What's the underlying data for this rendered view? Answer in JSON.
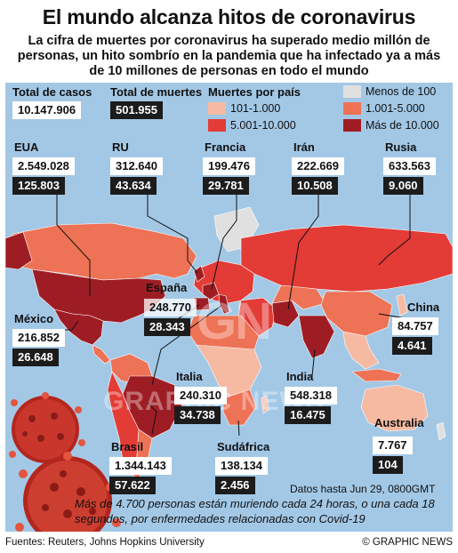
{
  "header": {
    "title": "El mundo alcanza hitos de coronavirus",
    "subtitle": "La cifra de muertes por coronavirus ha superado medio millón de personas, un hito sombrío en la pandemia que ha infectado ya a más de 10 millones de personas en todo el mundo"
  },
  "totals": {
    "cases_label": "Total de casos",
    "cases_value": "10.147.906",
    "deaths_label": "Total de muertes",
    "deaths_value": "501.955"
  },
  "legend": {
    "title": "Muertes por país",
    "items": [
      {
        "label": "Menos de 100",
        "color": "#e0e0e0"
      },
      {
        "label": "101-1.000",
        "color": "#f6b9a2"
      },
      {
        "label": "1.001-5.000",
        "color": "#ee7255"
      },
      {
        "label": "5.001-10.000",
        "color": "#e33b36"
      },
      {
        "label": "Más de 10.000",
        "color": "#9e1d24"
      }
    ]
  },
  "countries": {
    "usa": {
      "name": "EUA",
      "cases": "2.549.028",
      "deaths": "125.803"
    },
    "uk": {
      "name": "RU",
      "cases": "312.640",
      "deaths": "43.634"
    },
    "france": {
      "name": "Francia",
      "cases": "199.476",
      "deaths": "29.781"
    },
    "iran": {
      "name": "Irán",
      "cases": "222.669",
      "deaths": "10.508"
    },
    "russia": {
      "name": "Rusia",
      "cases": "633.563",
      "deaths": "9.060"
    },
    "spain": {
      "name": "España",
      "cases": "248.770",
      "deaths": "28.343"
    },
    "mexico": {
      "name": "México",
      "cases": "216.852",
      "deaths": "26.648"
    },
    "china": {
      "name": "China",
      "cases": "84.757",
      "deaths": "4.641"
    },
    "italy": {
      "name": "Italia",
      "cases": "240.310",
      "deaths": "34.738"
    },
    "india": {
      "name": "India",
      "cases": "548.318",
      "deaths": "16.475"
    },
    "australia": {
      "name": "Australia",
      "cases": "7.767",
      "deaths": "104"
    },
    "brazil": {
      "name": "Brasil",
      "cases": "1.344.143",
      "deaths": "57.622"
    },
    "south_africa": {
      "name": "Sudáfrica",
      "cases": "138.134",
      "deaths": "2.456"
    }
  },
  "watermark": {
    "logo": "GN",
    "text": "GRAPHIC NEWS"
  },
  "date_note": "Datos hasta Jun 29, 0800GMT",
  "bottom_note": "Más de 4.700 personas están muriendo cada 24 horas, o una cada 18 segundos, por enfermedades relacionadas con Covid-19",
  "footer": {
    "sources": "Fuentes: Reuters, Johns Hopkins University",
    "credit": "© GRAPHIC NEWS"
  }
}
